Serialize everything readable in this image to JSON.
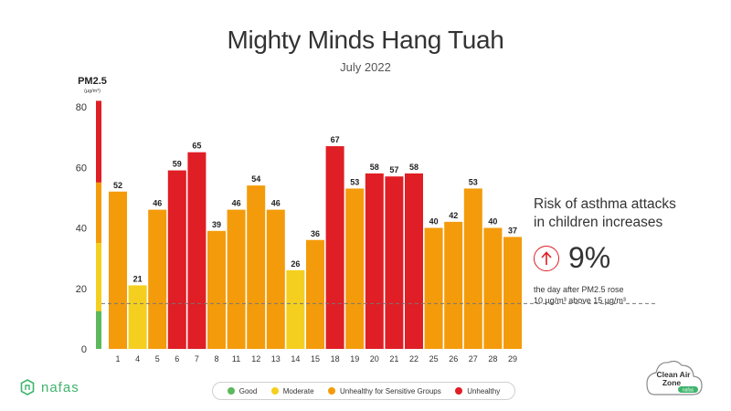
{
  "header": {
    "title": "Mighty Minds Hang Tuah",
    "subtitle": "July 2022"
  },
  "axis": {
    "label": "PM2.5",
    "unit": "(µg/m³)"
  },
  "chart_data": {
    "type": "bar",
    "title": "Mighty Minds Hang Tuah",
    "subtitle": "July 2022",
    "ylabel": "PM2.5 (µg/m³)",
    "ylim": [
      0,
      80
    ],
    "yticks": [
      0,
      20,
      40,
      60,
      80
    ],
    "grid": false,
    "reference_line": 15,
    "categories": [
      "1",
      "4",
      "5",
      "6",
      "7",
      "8",
      "11",
      "12",
      "13",
      "14",
      "15",
      "18",
      "19",
      "20",
      "21",
      "22",
      "25",
      "26",
      "27",
      "28",
      "29"
    ],
    "values": [
      52,
      21,
      46,
      59,
      65,
      39,
      46,
      54,
      46,
      26,
      36,
      67,
      53,
      58,
      57,
      58,
      40,
      42,
      53,
      40,
      37
    ],
    "bands": [
      {
        "name": "Good",
        "from": 0,
        "to": 12.5,
        "color": "#5cb85c"
      },
      {
        "name": "Moderate",
        "from": 12.5,
        "to": 35,
        "color": "#f5cf1f"
      },
      {
        "name": "Unhealthy for Sensitive Groups",
        "from": 35,
        "to": 55,
        "color": "#f49b0b"
      },
      {
        "name": "Unhealthy",
        "from": 55,
        "to": 82,
        "color": "#e01e25"
      }
    ]
  },
  "callout": {
    "headline_line1": "Risk of asthma attacks",
    "headline_line2": "in children increases",
    "value": "9%",
    "note_line1": "the day after PM2.5 rose",
    "note_line2": "10 µg/m³ above 15 µg/m³",
    "arrow_icon": "arrow-up-icon",
    "accent": "#e01e25"
  },
  "legend": [
    {
      "label": "Good",
      "color": "#5cb85c"
    },
    {
      "label": "Moderate",
      "color": "#f5cf1f"
    },
    {
      "label": "Unhealthy for Sensitive Groups",
      "color": "#f49b0b"
    },
    {
      "label": "Unhealthy",
      "color": "#e01e25"
    }
  ],
  "brand": {
    "left_logo": "nafas",
    "right_logo_line1": "Clean Air",
    "right_logo_line2": "Zone",
    "right_logo_badge": "nafas",
    "brand_color": "#3fb56c"
  }
}
